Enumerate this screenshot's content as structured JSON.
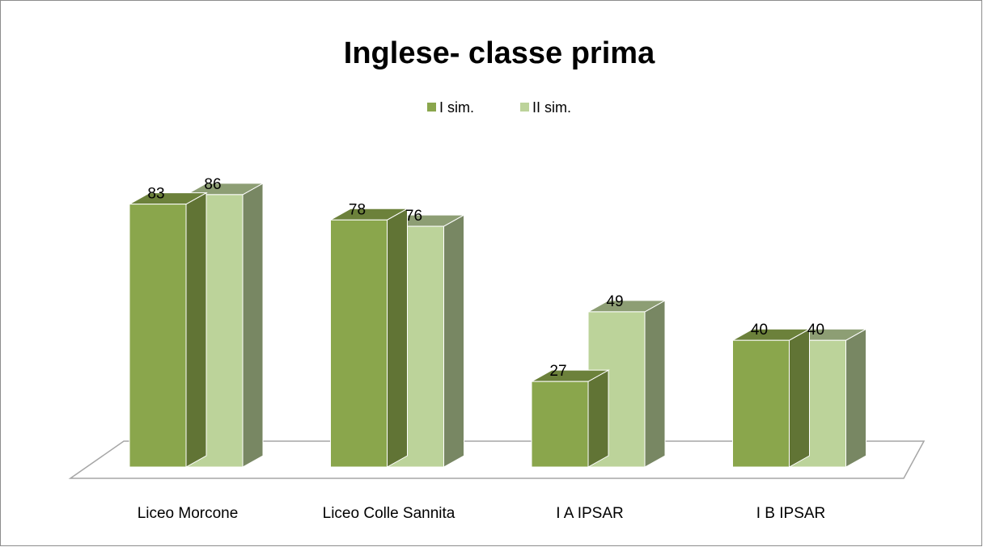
{
  "chart_data": {
    "type": "bar3d",
    "title": "Inglese- classe prima",
    "categories": [
      "Liceo Morcone",
      "Liceo Colle Sannita",
      "I A IPSAR",
      "I B IPSAR"
    ],
    "series": [
      {
        "name": "I sim.",
        "color": "#8aa64c",
        "values": [
          83,
          78,
          27,
          40
        ]
      },
      {
        "name": "II sim.",
        "color": "#bcd39a",
        "values": [
          86,
          76,
          49,
          40
        ]
      }
    ],
    "legend": "top"
  }
}
